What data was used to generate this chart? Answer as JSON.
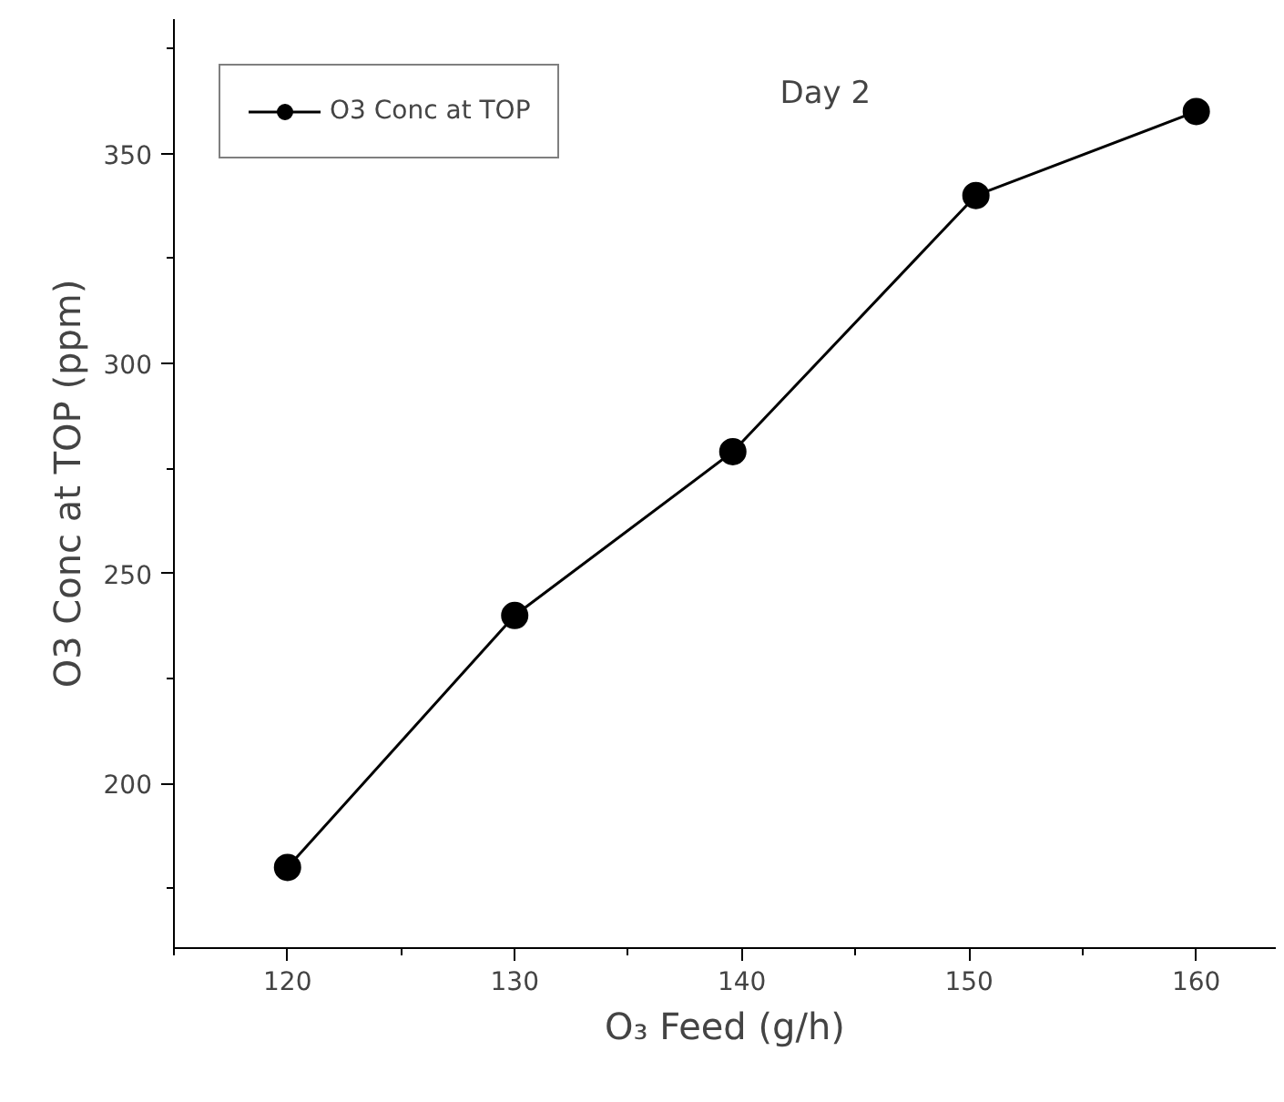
{
  "chart_data": {
    "type": "line",
    "xlabel": "O₃ Feed (g/h)",
    "ylabel": "O3 Conc at TOP (ppm)",
    "annotations": [
      "Day 2"
    ],
    "x": [
      120,
      130,
      139.6,
      150.3,
      160
    ],
    "series": [
      {
        "name": "O3 Conc at TOP",
        "color": "#000000",
        "values": [
          180,
          240,
          279,
          340,
          360
        ]
      }
    ],
    "xlim": [
      115,
      163.5
    ],
    "ylim": [
      160.8,
      382
    ],
    "xticks": [
      120,
      130,
      140,
      150,
      160
    ],
    "yticks": [
      200,
      250,
      300,
      350
    ],
    "marker": "circle",
    "line_style": "solid",
    "legend": "top left",
    "grid": false
  }
}
